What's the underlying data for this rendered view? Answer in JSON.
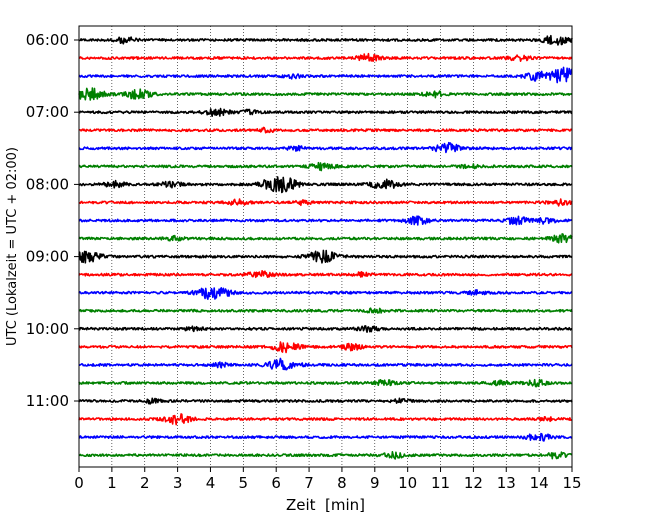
{
  "chart_data": {
    "type": "line",
    "title": "",
    "xlabel": "Zeit  [min]",
    "ylabel": "UTC (Lokalzeit = UTC + 02:00)",
    "xlim": [
      0,
      15
    ],
    "x_ticks": [
      "0",
      "1",
      "2",
      "3",
      "4",
      "5",
      "6",
      "7",
      "8",
      "9",
      "10",
      "11",
      "12",
      "13",
      "14",
      "15"
    ],
    "y_tick_labels": [
      "06:00",
      "07:00",
      "08:00",
      "09:00",
      "10:00",
      "11:00"
    ],
    "grid": "vertical dotted",
    "trace_interval_min": 15,
    "start_time": "06:00",
    "trace_colors": [
      "#000000",
      "#ff0000",
      "#0000ff",
      "#008000"
    ],
    "traces": [
      {
        "time": "06:00",
        "color": "#000000",
        "events": [
          {
            "t": 1.4,
            "amp": 3
          },
          {
            "t": 14.5,
            "amp": 5
          }
        ]
      },
      {
        "time": "06:15",
        "color": "#ff0000",
        "events": [
          {
            "t": 8.8,
            "amp": 4
          },
          {
            "t": 13.4,
            "amp": 3
          }
        ]
      },
      {
        "time": "06:30",
        "color": "#0000ff",
        "events": [
          {
            "t": 6.5,
            "amp": 2
          },
          {
            "t": 13.9,
            "amp": 4
          },
          {
            "t": 14.9,
            "amp": 9
          }
        ]
      },
      {
        "time": "06:45",
        "color": "#008000",
        "events": [
          {
            "t": 0.3,
            "amp": 6
          },
          {
            "t": 1.8,
            "amp": 5
          },
          {
            "t": 10.8,
            "amp": 3
          }
        ]
      },
      {
        "time": "07:00",
        "color": "#000000",
        "events": [
          {
            "t": 4.2,
            "amp": 4
          },
          {
            "t": 5.2,
            "amp": 2
          }
        ]
      },
      {
        "time": "07:15",
        "color": "#ff0000",
        "events": [
          {
            "t": 5.7,
            "amp": 2
          }
        ]
      },
      {
        "time": "07:30",
        "color": "#0000ff",
        "events": [
          {
            "t": 6.6,
            "amp": 2
          },
          {
            "t": 11.2,
            "amp": 5
          }
        ]
      },
      {
        "time": "07:45",
        "color": "#008000",
        "events": [
          {
            "t": 7.4,
            "amp": 4
          },
          {
            "t": 11.9,
            "amp": 2
          }
        ]
      },
      {
        "time": "08:00",
        "color": "#000000",
        "events": [
          {
            "t": 1.1,
            "amp": 3
          },
          {
            "t": 2.8,
            "amp": 3
          },
          {
            "t": 6.0,
            "amp": 7
          },
          {
            "t": 6.4,
            "amp": 3
          },
          {
            "t": 9.3,
            "amp": 5
          }
        ]
      },
      {
        "time": "08:15",
        "color": "#ff0000",
        "events": [
          {
            "t": 4.8,
            "amp": 3
          },
          {
            "t": 6.8,
            "amp": 2
          },
          {
            "t": 14.6,
            "amp": 3
          }
        ]
      },
      {
        "time": "08:30",
        "color": "#0000ff",
        "events": [
          {
            "t": 10.3,
            "amp": 4
          },
          {
            "t": 13.3,
            "amp": 4
          },
          {
            "t": 14.2,
            "amp": 3
          }
        ]
      },
      {
        "time": "08:45",
        "color": "#008000",
        "events": [
          {
            "t": 2.9,
            "amp": 2
          },
          {
            "t": 14.7,
            "amp": 4
          }
        ]
      },
      {
        "time": "09:00",
        "color": "#000000",
        "events": [
          {
            "t": 0.2,
            "amp": 6
          },
          {
            "t": 7.4,
            "amp": 6
          }
        ]
      },
      {
        "time": "09:15",
        "color": "#ff0000",
        "events": [
          {
            "t": 5.5,
            "amp": 4
          },
          {
            "t": 8.6,
            "amp": 2
          }
        ]
      },
      {
        "time": "09:30",
        "color": "#0000ff",
        "events": [
          {
            "t": 4.1,
            "amp": 7
          },
          {
            "t": 12.1,
            "amp": 2
          }
        ]
      },
      {
        "time": "09:45",
        "color": "#008000",
        "events": [
          {
            "t": 9.0,
            "amp": 2
          }
        ]
      },
      {
        "time": "10:00",
        "color": "#000000",
        "events": [
          {
            "t": 8.8,
            "amp": 3
          },
          {
            "t": 3.5,
            "amp": 2
          }
        ]
      },
      {
        "time": "10:15",
        "color": "#ff0000",
        "events": [
          {
            "t": 6.3,
            "amp": 5
          },
          {
            "t": 8.3,
            "amp": 3
          }
        ]
      },
      {
        "time": "10:30",
        "color": "#0000ff",
        "events": [
          {
            "t": 6.2,
            "amp": 6
          },
          {
            "t": 4.3,
            "amp": 2
          }
        ]
      },
      {
        "time": "10:45",
        "color": "#008000",
        "events": [
          {
            "t": 9.3,
            "amp": 3
          },
          {
            "t": 12.8,
            "amp": 2
          },
          {
            "t": 13.9,
            "amp": 3
          }
        ]
      },
      {
        "time": "11:00",
        "color": "#000000",
        "events": [
          {
            "t": 2.2,
            "amp": 2
          },
          {
            "t": 9.8,
            "amp": 2
          }
        ]
      },
      {
        "time": "11:15",
        "color": "#ff0000",
        "events": [
          {
            "t": 3.0,
            "amp": 5
          },
          {
            "t": 14.2,
            "amp": 2
          }
        ]
      },
      {
        "time": "11:30",
        "color": "#0000ff",
        "events": [
          {
            "t": 14.0,
            "amp": 4
          }
        ]
      },
      {
        "time": "11:45",
        "color": "#008000",
        "events": [
          {
            "t": 9.6,
            "amp": 3
          },
          {
            "t": 14.5,
            "amp": 3
          }
        ]
      }
    ]
  }
}
